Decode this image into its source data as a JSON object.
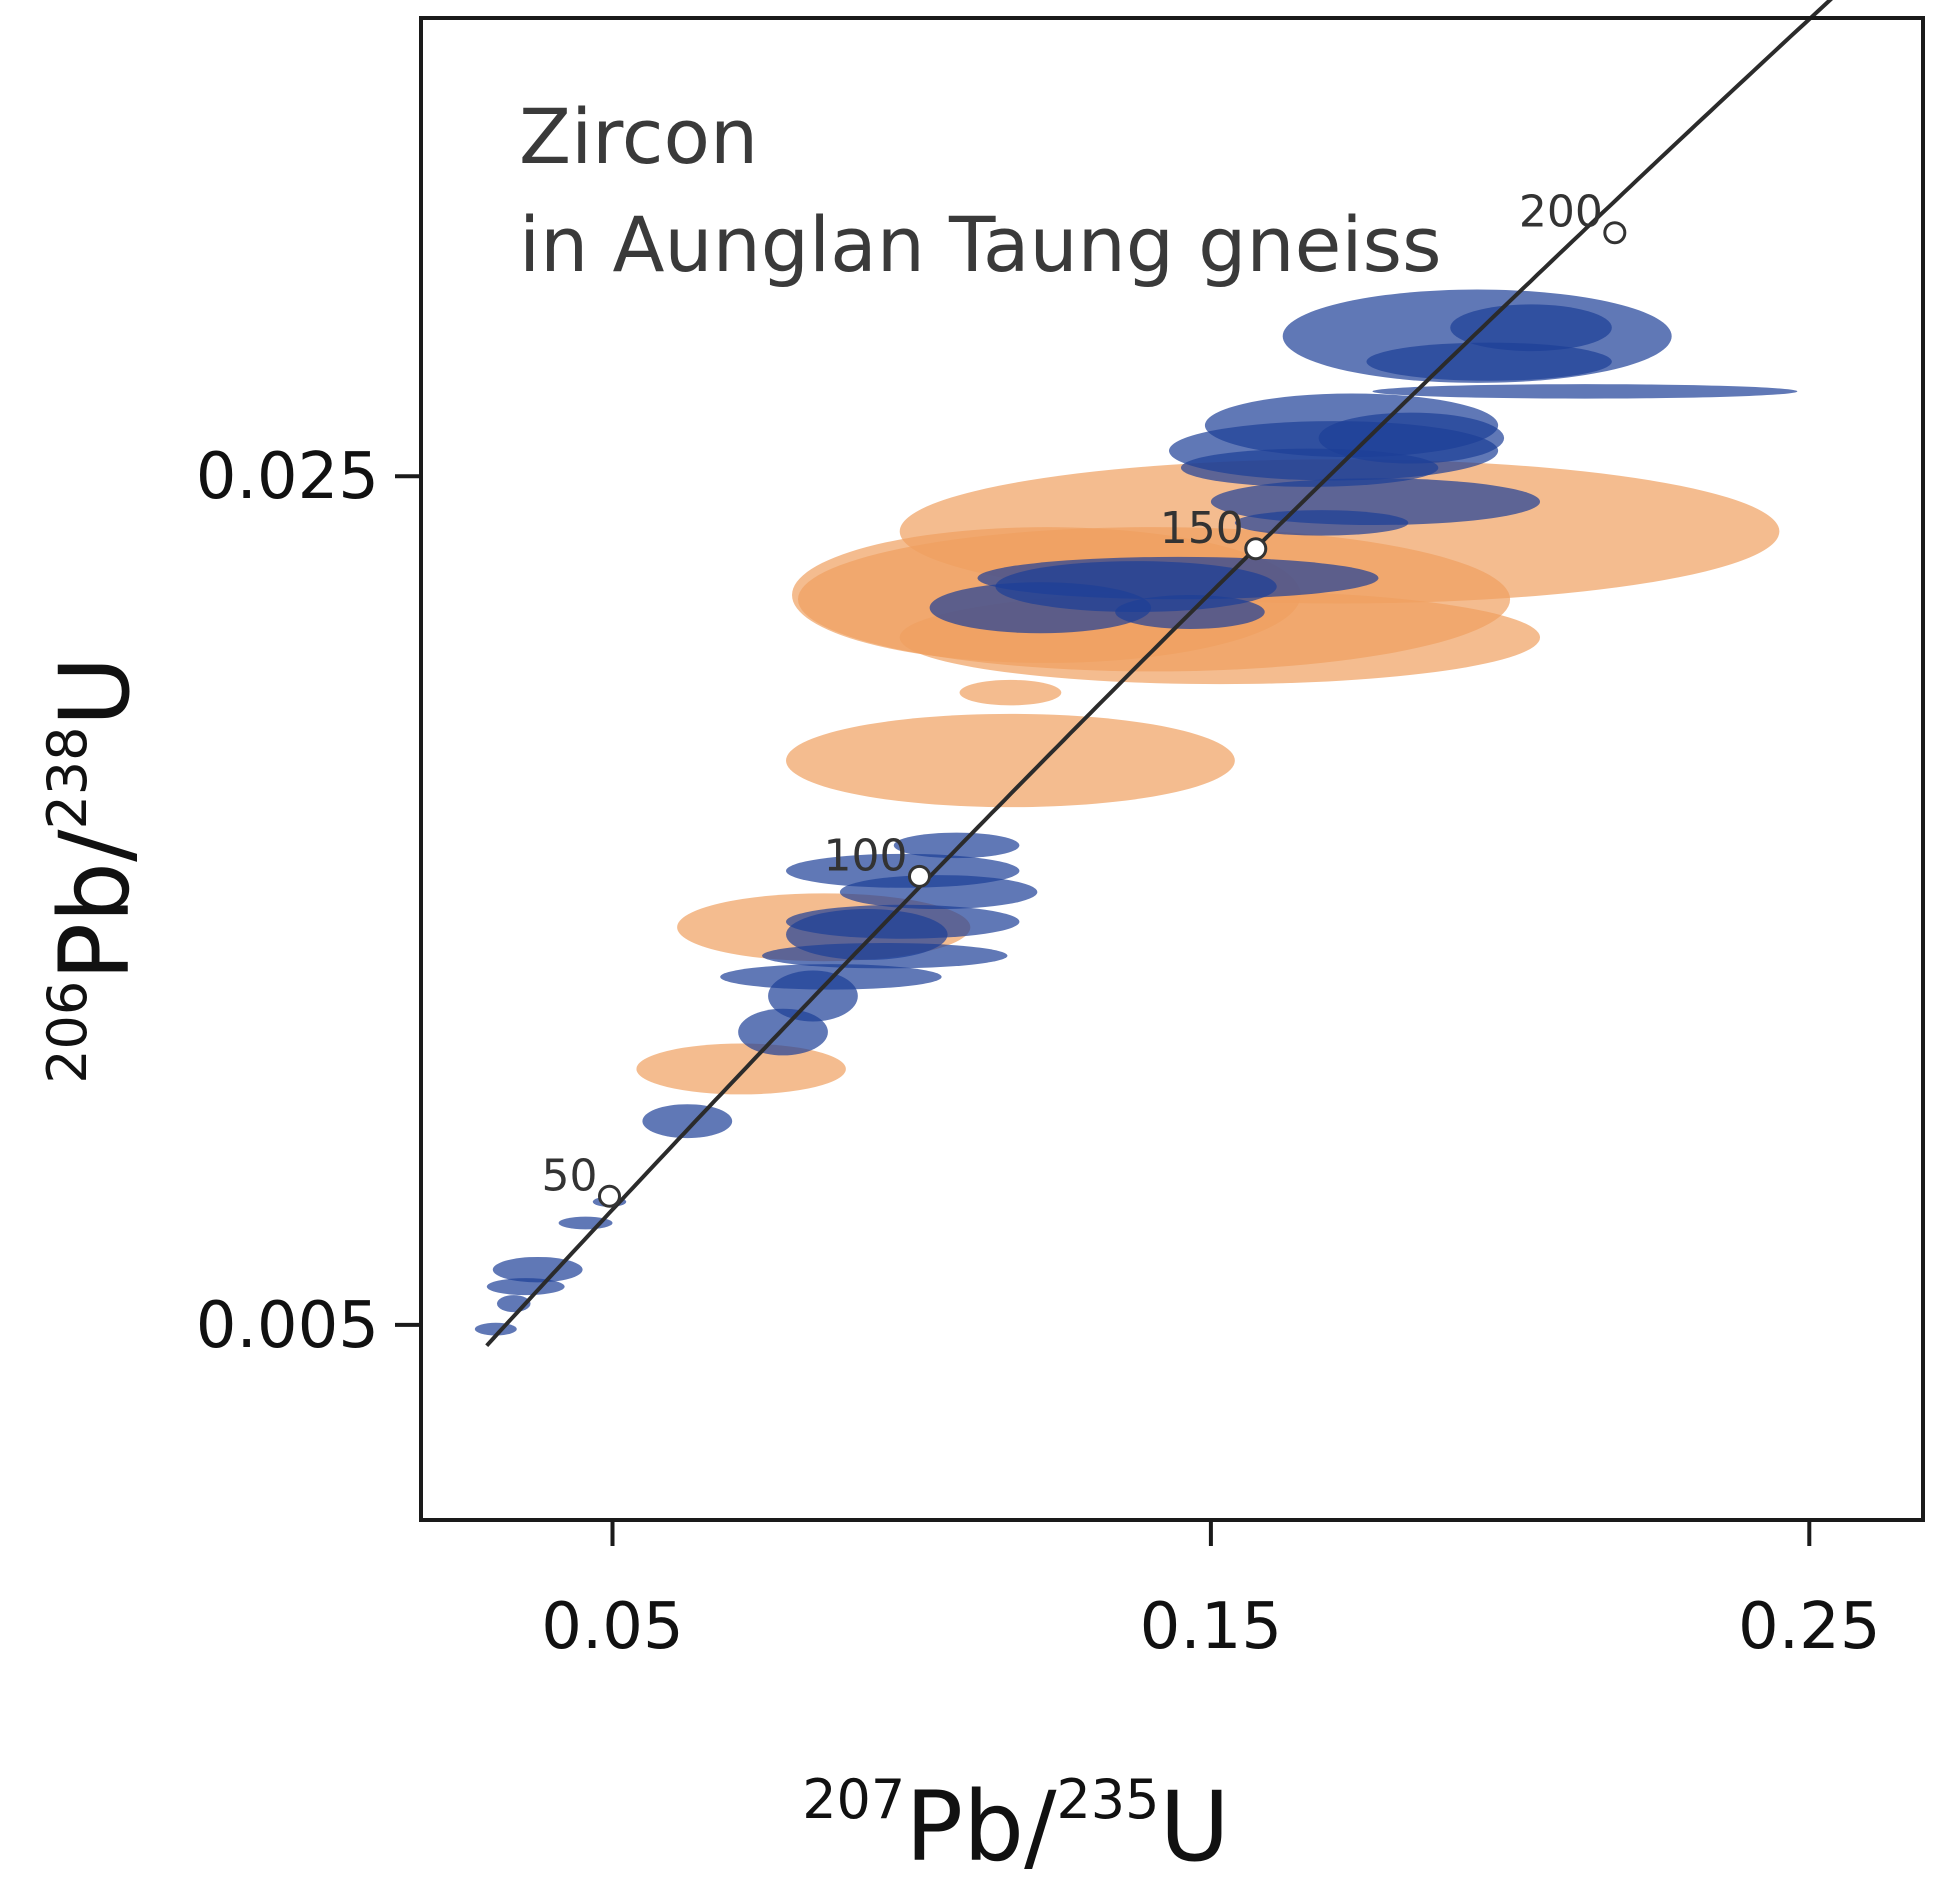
{
  "chart_data": {
    "type": "scatter",
    "plot_kind": "concordia diagram with error ellipses",
    "title_lines": [
      "Zircon",
      "in Aunglan Taung gneiss"
    ],
    "xlabel": {
      "pre": "207",
      "main": "Pb/",
      "sup": "235",
      "end": "U"
    },
    "ylabel": {
      "pre": "206",
      "main": "Pb/",
      "sup": "238",
      "end": "U"
    },
    "xlim": [
      0.018,
      0.269
    ],
    "ylim": [
      0.0004,
      0.0358
    ],
    "x_ticks": [
      {
        "value": 0.05,
        "label": "0.05"
      },
      {
        "value": 0.15,
        "label": "0.15"
      },
      {
        "value": 0.25,
        "label": "0.25"
      }
    ],
    "y_ticks": [
      {
        "value": 0.005,
        "label": "0.005"
      },
      {
        "value": 0.025,
        "label": "0.025"
      }
    ],
    "concordia": {
      "color": "#2b2b2b",
      "age_markers": [
        {
          "age": "50",
          "x": 0.0495,
          "y": 0.00803
        },
        {
          "age": "100",
          "x": 0.1013,
          "y": 0.01557
        },
        {
          "age": "150",
          "x": 0.1575,
          "y": 0.02329
        },
        {
          "age": "200",
          "x": 0.2175,
          "y": 0.03074
        }
      ]
    },
    "series": [
      {
        "name": "",
        "color": "#f0a060",
        "opacity": 0.7,
        "ellipses": [
          {
            "cx": 0.1715,
            "cy": 0.0237,
            "rx": 0.0735,
            "ry": 0.0017
          },
          {
            "cx": 0.1225,
            "cy": 0.0222,
            "rx": 0.0425,
            "ry": 0.0016
          },
          {
            "cx": 0.1405,
            "cy": 0.0221,
            "rx": 0.0595,
            "ry": 0.0017
          },
          {
            "cx": 0.1515,
            "cy": 0.0212,
            "rx": 0.0535,
            "ry": 0.0011
          },
          {
            "cx": 0.1165,
            "cy": 0.0183,
            "rx": 0.0375,
            "ry": 0.0011
          },
          {
            "cx": 0.0853,
            "cy": 0.01437,
            "rx": 0.0245,
            "ry": 0.0008
          },
          {
            "cx": 0.0715,
            "cy": 0.01103,
            "rx": 0.0175,
            "ry": 0.0006
          },
          {
            "cx": 0.1165,
            "cy": 0.0199,
            "rx": 0.0085,
            "ry": 0.0003
          }
        ]
      },
      {
        "name": "",
        "color": "#1c3f97",
        "opacity": 0.7,
        "ellipses": [
          {
            "cx": 0.1945,
            "cy": 0.0283,
            "rx": 0.0325,
            "ry": 0.0011
          },
          {
            "cx": 0.2035,
            "cy": 0.0285,
            "rx": 0.0135,
            "ry": 0.00055
          },
          {
            "cx": 0.1965,
            "cy": 0.0277,
            "rx": 0.0205,
            "ry": 0.00045
          },
          {
            "cx": 0.2125,
            "cy": 0.027,
            "rx": 0.0355,
            "ry": 0.00017
          },
          {
            "cx": 0.1735,
            "cy": 0.0262,
            "rx": 0.0245,
            "ry": 0.00075
          },
          {
            "cx": 0.1705,
            "cy": 0.0256,
            "rx": 0.0275,
            "ry": 0.0007
          },
          {
            "cx": 0.1835,
            "cy": 0.0259,
            "rx": 0.0155,
            "ry": 0.0006
          },
          {
            "cx": 0.1665,
            "cy": 0.0252,
            "rx": 0.0215,
            "ry": 0.00045
          },
          {
            "cx": 0.1775,
            "cy": 0.0244,
            "rx": 0.0275,
            "ry": 0.00055
          },
          {
            "cx": 0.1685,
            "cy": 0.0239,
            "rx": 0.0145,
            "ry": 0.0003
          },
          {
            "cx": 0.1445,
            "cy": 0.0226,
            "rx": 0.0335,
            "ry": 0.0005
          },
          {
            "cx": 0.1375,
            "cy": 0.0224,
            "rx": 0.0235,
            "ry": 0.0006
          },
          {
            "cx": 0.1465,
            "cy": 0.0218,
            "rx": 0.0125,
            "ry": 0.0004
          },
          {
            "cx": 0.1215,
            "cy": 0.0219,
            "rx": 0.0185,
            "ry": 0.0006
          },
          {
            "cx": 0.1075,
            "cy": 0.0163,
            "rx": 0.0105,
            "ry": 0.0003
          },
          {
            "cx": 0.0985,
            "cy": 0.0157,
            "rx": 0.0195,
            "ry": 0.0004
          },
          {
            "cx": 0.1045,
            "cy": 0.0152,
            "rx": 0.0165,
            "ry": 0.0004
          },
          {
            "cx": 0.0985,
            "cy": 0.0145,
            "rx": 0.0195,
            "ry": 0.0004
          },
          {
            "cx": 0.0925,
            "cy": 0.0142,
            "rx": 0.0135,
            "ry": 0.0006
          },
          {
            "cx": 0.0955,
            "cy": 0.0137,
            "rx": 0.0205,
            "ry": 0.0003
          },
          {
            "cx": 0.0865,
            "cy": 0.0132,
            "rx": 0.0185,
            "ry": 0.0003
          },
          {
            "cx": 0.0835,
            "cy": 0.01275,
            "rx": 0.0075,
            "ry": 0.0006
          },
          {
            "cx": 0.0785,
            "cy": 0.0119,
            "rx": 0.0075,
            "ry": 0.00055
          },
          {
            "cx": 0.0625,
            "cy": 0.0098,
            "rx": 0.0075,
            "ry": 0.0004
          },
          {
            "cx": 0.0495,
            "cy": 0.0079,
            "rx": 0.0028,
            "ry": 0.00012
          },
          {
            "cx": 0.0455,
            "cy": 0.0074,
            "rx": 0.0045,
            "ry": 0.00015
          },
          {
            "cx": 0.0375,
            "cy": 0.0063,
            "rx": 0.0075,
            "ry": 0.0003
          },
          {
            "cx": 0.0355,
            "cy": 0.0059,
            "rx": 0.0065,
            "ry": 0.0002
          },
          {
            "cx": 0.0335,
            "cy": 0.0055,
            "rx": 0.0028,
            "ry": 0.0002
          },
          {
            "cx": 0.0305,
            "cy": 0.0049,
            "rx": 0.0035,
            "ry": 0.00015
          }
        ]
      }
    ]
  }
}
